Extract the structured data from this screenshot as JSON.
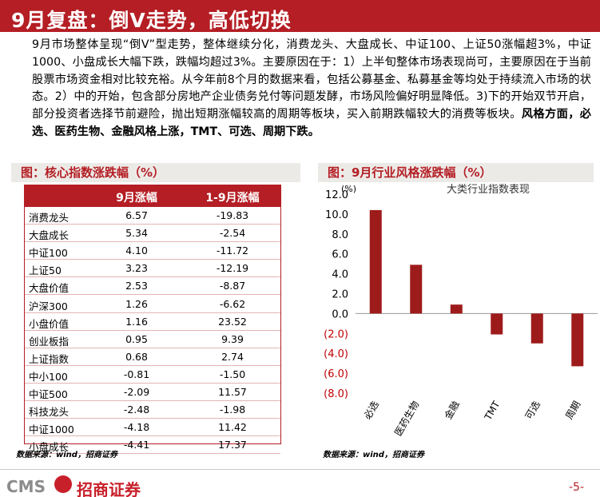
{
  "header": {
    "title": "9月复盘：倒V走势，高低切换"
  },
  "paragraph": {
    "text": "9月市场整体呈现“倒V”型走势，整体继续分化，消费龙头、大盘成长、中证100、上证50涨幅超3%，中证1000、小盘成长大幅下跌，跌幅均超过3%。主要原因在于：1）上半旬整体市场表现尚可，主要原因在于当前股票市场资金相对比较充裕。从今年前8个月的数据来看，包括公募基金、私募基金等均处于持续流入市场的状态。2）中的开始，包含部分房地产企业债务兑付等问题发酵，市场风险偏好明显降低。3)下的开始双节开启，部分投资者选择节前避险，抛出短期涨幅较高的周期等板块，买入前期跌幅较大的消费等板块。",
    "bold": "风格方面，必选、医药生物、金融风格上涨，TMT、可选、周期下跌。"
  },
  "left_panel": {
    "title": "图：核心指数涨跌幅（%）",
    "columns": [
      "",
      "9月涨幅",
      "1-9月涨幅"
    ],
    "rows": [
      [
        "消费龙头",
        "6.57",
        "-19.83"
      ],
      [
        "大盘成长",
        "5.34",
        "-2.54"
      ],
      [
        "中证100",
        "4.10",
        "-11.72"
      ],
      [
        "上证50",
        "3.23",
        "-12.19"
      ],
      [
        "大盘价值",
        "2.53",
        "-8.87"
      ],
      [
        "沪深300",
        "1.26",
        "-6.62"
      ],
      [
        "小盘价值",
        "1.16",
        "23.52"
      ],
      [
        "创业板指",
        "0.95",
        "9.39"
      ],
      [
        "上证指数",
        "0.68",
        "2.74"
      ],
      [
        "中小100",
        "-0.81",
        "-1.50"
      ],
      [
        "中证500",
        "-2.09",
        "11.57"
      ],
      [
        "科技龙头",
        "-2.48",
        "-1.98"
      ],
      [
        "中证1000",
        "-4.18",
        "11.42"
      ],
      [
        "小盘成长",
        "-4.41",
        "17.37"
      ]
    ],
    "source": "数据来源：wind，招商证券"
  },
  "right_panel": {
    "title": "图：9月行业风格涨跌幅（%）",
    "source": "数据来源：wind，招商证券"
  },
  "chart_data": {
    "type": "bar",
    "title": "大类行业指数表现",
    "unit": "(%)",
    "categories": [
      "必选",
      "医药生物",
      "金融",
      "TMT",
      "可选",
      "周期"
    ],
    "values": [
      10.4,
      4.9,
      0.9,
      -2.1,
      -3.0,
      -5.3
    ],
    "ylim": [
      -8.0,
      12.0
    ],
    "yticks": [
      "12.0",
      "10.0",
      "8.0",
      "6.0",
      "4.0",
      "2.0",
      "0.0",
      "(2.0)",
      "(4.0)",
      "(6.0)",
      "(8.0)"
    ],
    "bar_color": "#9e1b1b",
    "negative_tick_color": "#c00000",
    "grid": false
  },
  "footer": {
    "logo_text": "CMS",
    "logo_cn": "招商证券",
    "page": "-5-"
  }
}
